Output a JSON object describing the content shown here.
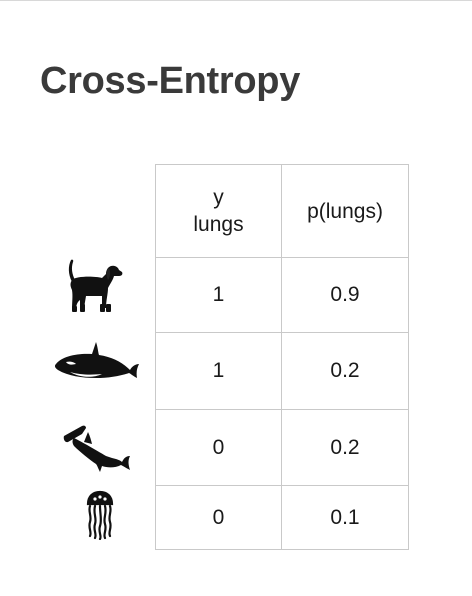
{
  "title": "Cross-Entropy",
  "table": {
    "headers": {
      "y_line1": "y",
      "y_line2": "lungs",
      "p": "p(lungs)"
    },
    "rows": [
      {
        "animal_icon": "dog-icon",
        "y": "1",
        "p": "0.9"
      },
      {
        "animal_icon": "orca-icon",
        "y": "1",
        "p": "0.2"
      },
      {
        "animal_icon": "hammerhead-shark-icon",
        "y": "0",
        "p": "0.2"
      },
      {
        "animal_icon": "jellyfish-icon",
        "y": "0",
        "p": "0.1"
      }
    ]
  },
  "colors": {
    "title": "#3a3a3a",
    "grid": "#c9c9c9",
    "icon": "#111111"
  }
}
